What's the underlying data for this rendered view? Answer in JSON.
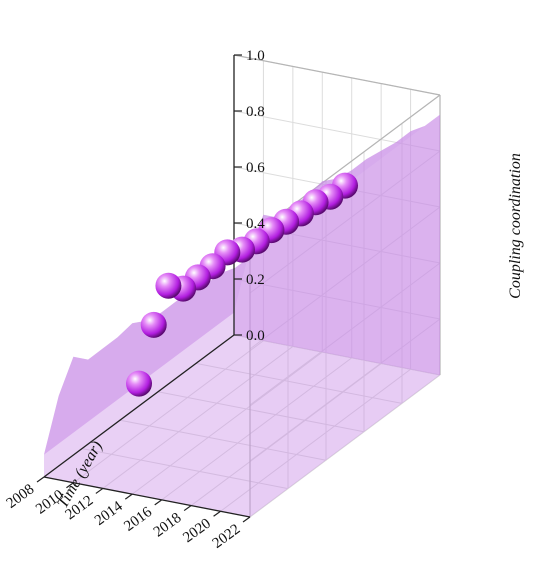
{
  "chart_data": {
    "type": "scatter",
    "view": "3d",
    "xlabel": "Time (year)",
    "zlabel": "Coupling coordination",
    "x_ticks": [
      "2008",
      "2010",
      "2012",
      "2014",
      "2016",
      "2018",
      "2020",
      "2022"
    ],
    "z_ticks": [
      "0.0",
      "0.2",
      "0.4",
      "0.6",
      "0.8",
      "1.0"
    ],
    "xlim": [
      2008,
      2022
    ],
    "zlim": [
      0.0,
      1.0
    ],
    "grid": true,
    "surface_color": "#c98ce6",
    "surface_opacity": 0.55,
    "point_color": "#b21ee0",
    "x": [
      2008,
      2009,
      2010,
      2011,
      2012,
      2013,
      2014,
      2015,
      2016,
      2017,
      2018,
      2019,
      2020,
      2021,
      2022
    ],
    "values": [
      0.08,
      0.3,
      0.45,
      0.45,
      0.5,
      0.55,
      0.61,
      0.63,
      0.67,
      0.72,
      0.76,
      0.8,
      0.85,
      0.88,
      0.93
    ]
  }
}
